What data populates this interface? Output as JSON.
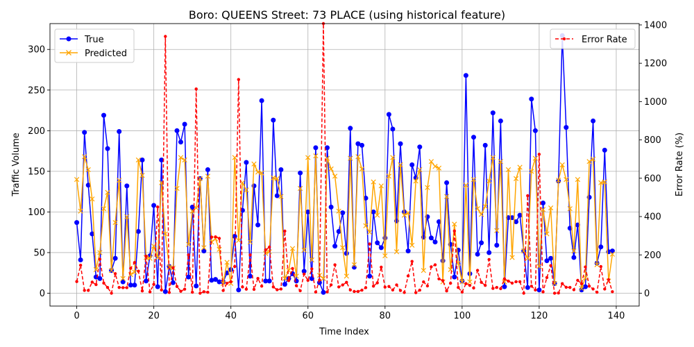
{
  "chart_data": {
    "type": "line",
    "title": "Boro: QUEENS Street: 73 PLACE (using historical feature)",
    "xlabel": "Time Index",
    "ylabel": "Traffic Volume",
    "y2label": "Error Rate (%)",
    "xlim": [
      -6.95,
      145.95
    ],
    "ylim": [
      -15.8,
      331.8
    ],
    "y2lim": [
      -67,
      1407
    ],
    "xticks": [
      0,
      20,
      40,
      60,
      80,
      100,
      120,
      140
    ],
    "yticks": [
      0,
      50,
      100,
      150,
      200,
      250,
      300
    ],
    "y2ticks": [
      0,
      200,
      400,
      600,
      800,
      1000,
      1200,
      1400
    ],
    "grid": true,
    "legend_left": {
      "placement": "upper-left",
      "entries": [
        "True",
        "Predicted"
      ]
    },
    "legend_right": {
      "placement": "upper-right",
      "entries": [
        "Error Rate"
      ]
    },
    "colors": {
      "true": "#0000ff",
      "predicted": "#ffa500",
      "error": "#ff0000"
    },
    "series": [
      {
        "name": "True",
        "axis": "left",
        "marker": "circle",
        "values": [
          87,
          41,
          198,
          133,
          73,
          20,
          18,
          219,
          178,
          28,
          43,
          199,
          14,
          132,
          10,
          10,
          76,
          164,
          15,
          46,
          108,
          8,
          164,
          2,
          33,
          13,
          200,
          186,
          208,
          20,
          106,
          9,
          141,
          52,
          152,
          16,
          17,
          14,
          14,
          25,
          29,
          70,
          4,
          102,
          161,
          21,
          132,
          84,
          237,
          15,
          15,
          213,
          120,
          152,
          11,
          18,
          24,
          15,
          148,
          27,
          100,
          18,
          179,
          13,
          1,
          179,
          106,
          58,
          76,
          99,
          49,
          203,
          32,
          184,
          182,
          117,
          21,
          100,
          62,
          56,
          68,
          220,
          202,
          89,
          184,
          100,
          52,
          158,
          142,
          180,
          69,
          94,
          68,
          63,
          88,
          40,
          136,
          60,
          20,
          53,
          15,
          268,
          24,
          192,
          48,
          62,
          182,
          50,
          222,
          59,
          212,
          8,
          93,
          93,
          88,
          96,
          52,
          7,
          239,
          200,
          4,
          111,
          40,
          43,
          12,
          138,
          317,
          204,
          80,
          44,
          84,
          4,
          8,
          118,
          212,
          37,
          57,
          176,
          51,
          52
        ]
      },
      {
        "name": "Predicted",
        "axis": "left",
        "marker": "x",
        "values": [
          140,
          101,
          168,
          152,
          116,
          29,
          50,
          104,
          124,
          28,
          87,
          139,
          18,
          94,
          23,
          26,
          164,
          145,
          44,
          43,
          58,
          44,
          136,
          73,
          32,
          31,
          129,
          167,
          164,
          60,
          101,
          105,
          141,
          56,
          144,
          63,
          67,
          54,
          12,
          38,
          12,
          167,
          65,
          136,
          127,
          63,
          159,
          149,
          148,
          49,
          51,
          142,
          141,
          119,
          18,
          28,
          55,
          21,
          129,
          53,
          167,
          41,
          169,
          22,
          18,
          166,
          153,
          144,
          101,
          56,
          21,
          166,
          35,
          168,
          153,
          83,
          75,
          137,
          96,
          132,
          46,
          144,
          167,
          51,
          158,
          96,
          99,
          59,
          138,
          152,
          28,
          130,
          162,
          156,
          154,
          14,
          119,
          29,
          85,
          37,
          14,
          133,
          14,
          140,
          104,
          97,
          107,
          138,
          167,
          77,
          162,
          14,
          152,
          44,
          141,
          155,
          52,
          43,
          150,
          166,
          33,
          103,
          73,
          105,
          12,
          139,
          158,
          140,
          104,
          52,
          140,
          6,
          19,
          162,
          165,
          35,
          136,
          137,
          15,
          48
        ]
      },
      {
        "name": "Error Rate",
        "axis": "right",
        "marker": "dot",
        "dashed": true,
        "values": [
          61,
          146,
          15,
          15,
          58,
          45,
          178,
          53,
          30,
          0,
          102,
          30,
          29,
          29,
          130,
          160,
          115,
          12,
          193,
          7,
          46,
          450,
          17,
          1340,
          4,
          133,
          35,
          10,
          21,
          200,
          5,
          1066,
          0,
          8,
          5,
          293,
          294,
          286,
          14,
          52,
          60,
          139,
          1115,
          33,
          21,
          200,
          20,
          77,
          37,
          226,
          241,
          33,
          18,
          22,
          324,
          66,
          129,
          39,
          13,
          100,
          67,
          127,
          6,
          69,
          1700,
          7,
          44,
          148,
          33,
          43,
          57,
          17,
          9,
          9,
          16,
          29,
          257,
          37,
          54,
          136,
          32,
          35,
          17,
          43,
          14,
          4,
          90,
          166,
          3,
          16,
          59,
          38,
          138,
          148,
          75,
          66,
          12,
          52,
          325,
          30,
          6,
          50,
          41,
          27,
          119,
          57,
          41,
          176,
          25,
          30,
          24,
          75,
          63,
          53,
          60,
          60,
          0,
          509,
          37,
          17,
          725,
          7,
          82,
          144,
          0,
          1,
          50,
          31,
          30,
          18,
          67,
          50,
          137,
          37,
          22,
          5,
          139,
          22,
          71,
          8
        ]
      }
    ]
  }
}
